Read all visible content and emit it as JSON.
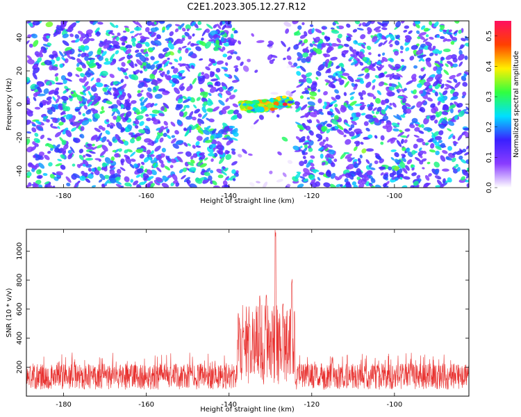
{
  "title": "C2E1.2023.305.12.27.R12",
  "chart_data": [
    {
      "type": "heatmap",
      "xlabel": "Height of straight line (km)",
      "ylabel": "Frequency (Hz)",
      "xlim": [
        -189,
        -82
      ],
      "ylim": [
        -50,
        50
      ],
      "xticks": [
        -180,
        -160,
        -140,
        -120,
        -100
      ],
      "yticks": [
        -40,
        -20,
        0,
        20,
        40
      ],
      "colorbar": {
        "label": "Normalized spectral amplitude",
        "range": [
          0.0,
          0.55
        ],
        "ticks": [
          0.0,
          0.1,
          0.2,
          0.3,
          0.4,
          0.5
        ],
        "colors": [
          "#ffffff",
          "#8a3dff",
          "#3a20ff",
          "#00e0ff",
          "#30ff40",
          "#fff000",
          "#ff4000",
          "#ff1060"
        ]
      },
      "features": [
        {
          "description_region": "signal band",
          "x_range": [
            -137,
            -125
          ],
          "y_center": 0,
          "peak_value": 0.5
        },
        {
          "description_region": "quiet gap",
          "x_range": [
            -138,
            -124
          ]
        }
      ],
      "grid": false
    },
    {
      "type": "line",
      "xlabel": "Height of straight line (km)",
      "ylabel": "SNR (10 * v/v)",
      "xlim": [
        -189,
        -82
      ],
      "ylim": [
        0,
        1150
      ],
      "xticks": [
        -180,
        -160,
        -140,
        -120,
        -100
      ],
      "yticks": [
        200,
        400,
        600,
        800,
        1000
      ],
      "color": "#e8302e",
      "baseline_mean": 150,
      "baseline_max": 300,
      "peaks": [
        {
          "x": -128.8,
          "y": 1150
        },
        {
          "x": -124.8,
          "y": 820
        },
        {
          "x": -132.5,
          "y": 700
        },
        {
          "x": -131.0,
          "y": 720
        },
        {
          "x": -127.0,
          "y": 650
        },
        {
          "x": -135.0,
          "y": 500
        },
        {
          "x": -136.5,
          "y": 480
        }
      ],
      "grid": false
    }
  ]
}
